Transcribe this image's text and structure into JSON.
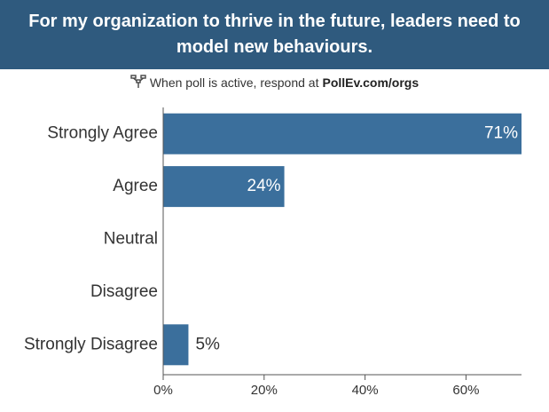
{
  "header": {
    "title": "For my organization to thrive in the future, leaders need to model new behaviours."
  },
  "instruction": {
    "text": "When poll is active, respond at",
    "url": "PollEv.com/orgs",
    "icon": "poll-everywhere-icon"
  },
  "colors": {
    "header_bg": "#2f5a7e",
    "bar": "#3b6f9c",
    "axis": "#555555"
  },
  "chart_data": {
    "type": "bar",
    "orientation": "horizontal",
    "title": "For my organization to thrive in the future, leaders need to model new behaviours.",
    "categories": [
      "Strongly Agree",
      "Agree",
      "Neutral",
      "Disagree",
      "Strongly Disagree"
    ],
    "values": [
      71,
      24,
      0,
      0,
      5
    ],
    "value_labels": [
      "71%",
      "24%",
      "",
      "",
      "5%"
    ],
    "xlim": [
      0,
      71
    ],
    "x_ticks": [
      0,
      20,
      40,
      60
    ],
    "x_tick_labels": [
      "0%",
      "20%",
      "40%",
      "60%"
    ],
    "xlabel": "",
    "ylabel": "",
    "grid": false
  }
}
